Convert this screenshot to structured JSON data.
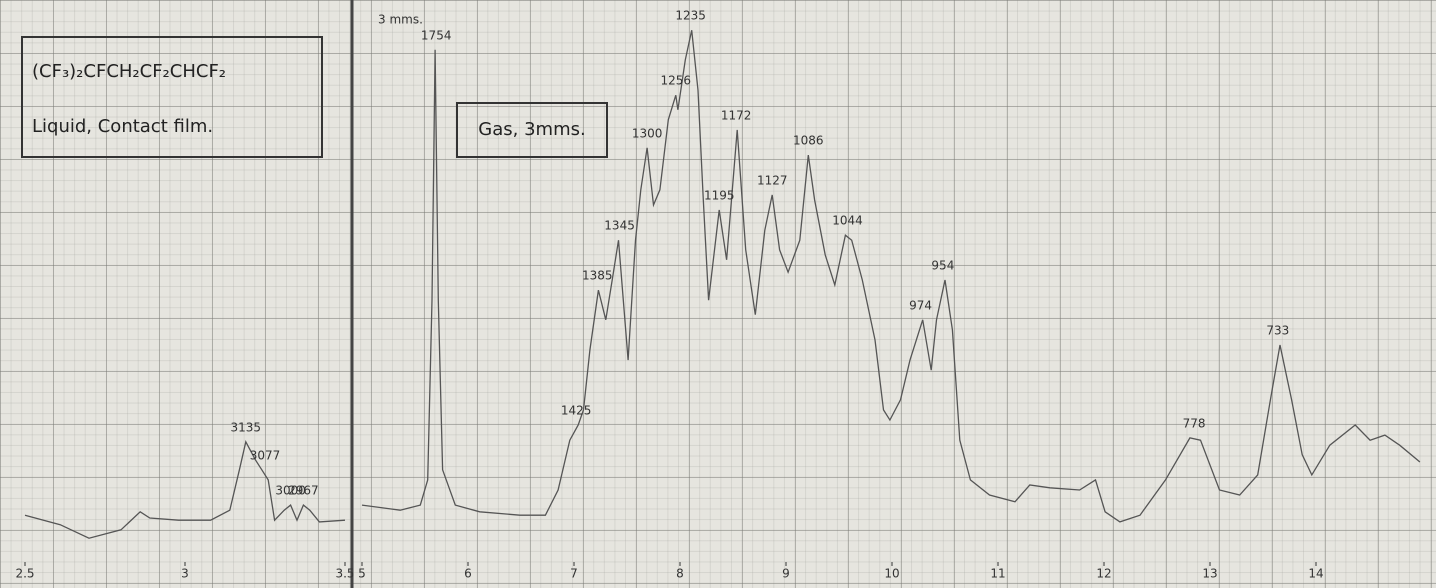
{
  "labels": {
    "formula": "(CF₃)₂CFCH₂CF₂CHCF₂",
    "state": "Liquid, Contact film.",
    "gas": "Gas, 3mms.",
    "path": "3 mms."
  },
  "chart_data": [
    {
      "type": "line",
      "color": "#555555",
      "xlim": [
        2.5,
        3.5
      ],
      "ylim": [
        0,
        100
      ],
      "xticks": [
        2.5,
        3,
        3.5
      ],
      "x": [
        2.5,
        2.61,
        2.7,
        2.8,
        2.86,
        2.89,
        2.98,
        3.08,
        3.14,
        3.17,
        3.19,
        3.22,
        3.24,
        3.26,
        3.28,
        3.31,
        3.33,
        3.35,
        3.37,
        3.39,
        3.42,
        3.5
      ],
      "values": [
        8.0,
        6.3,
        3.9,
        5.4,
        8.6,
        7.5,
        7.1,
        7.1,
        8.9,
        16.1,
        21.1,
        17.9,
        16.1,
        14.3,
        7.1,
        8.9,
        9.8,
        7.1,
        9.8,
        8.9,
        6.8,
        7.1
      ],
      "annotations": [
        {
          "text": "3135",
          "x": 3.19
        },
        {
          "text": "3077",
          "x": 3.25
        },
        {
          "text": "3000",
          "x": 3.33
        },
        {
          "text": "2967",
          "x": 3.37
        }
      ]
    },
    {
      "type": "line",
      "color": "#555555",
      "xlim": [
        5,
        15
      ],
      "ylim": [
        0,
        100
      ],
      "xticks": [
        5,
        6,
        7,
        8,
        9,
        10,
        11,
        12,
        13,
        14
      ],
      "x": [
        5.0,
        5.36,
        5.55,
        5.62,
        5.66,
        5.69,
        5.72,
        5.76,
        5.88,
        6.11,
        6.49,
        6.73,
        6.85,
        6.96,
        7.04,
        7.09,
        7.15,
        7.23,
        7.3,
        7.36,
        7.42,
        7.51,
        7.58,
        7.63,
        7.69,
        7.75,
        7.81,
        7.89,
        7.96,
        7.98,
        8.05,
        8.11,
        8.17,
        8.22,
        8.27,
        8.37,
        8.44,
        8.54,
        8.62,
        8.71,
        8.8,
        8.87,
        8.94,
        9.02,
        9.13,
        9.21,
        9.27,
        9.37,
        9.46,
        9.56,
        9.62,
        9.72,
        9.84,
        9.92,
        9.98,
        10.08,
        10.17,
        10.29,
        10.37,
        10.42,
        10.5,
        10.57,
        10.64,
        10.74,
        10.92,
        11.16,
        11.3,
        11.49,
        11.77,
        11.92,
        12.01,
        12.15,
        12.34,
        12.58,
        12.81,
        12.91,
        13.09,
        13.28,
        13.45,
        13.57,
        13.66,
        13.77,
        13.87,
        13.96,
        14.13,
        14.37,
        14.51,
        14.65,
        14.79,
        14.98
      ],
      "values": [
        9.8,
        8.9,
        9.8,
        14.3,
        46.4,
        91.1,
        46.4,
        16.1,
        9.8,
        8.6,
        8.0,
        8.0,
        12.5,
        21.4,
        24.1,
        26.8,
        37.5,
        48.2,
        42.9,
        50.0,
        57.1,
        35.7,
        57.1,
        66.1,
        73.6,
        63.4,
        66.1,
        78.6,
        83.0,
        80.4,
        89.3,
        94.6,
        83.9,
        64.3,
        46.4,
        62.5,
        53.6,
        76.8,
        55.4,
        43.8,
        58.9,
        65.2,
        55.4,
        51.4,
        57.1,
        72.3,
        64.3,
        54.5,
        49.1,
        58.0,
        57.1,
        50.0,
        39.3,
        26.8,
        25.0,
        28.6,
        35.7,
        42.9,
        33.9,
        42.9,
        50.0,
        41.1,
        21.4,
        14.3,
        11.6,
        10.4,
        13.4,
        12.9,
        12.5,
        14.3,
        8.6,
        6.8,
        8.0,
        14.3,
        21.8,
        21.4,
        12.5,
        11.6,
        15.2,
        28.6,
        38.4,
        28.6,
        18.8,
        15.2,
        20.5,
        24.1,
        21.4,
        22.3,
        20.5,
        17.5
      ],
      "annotations": [
        {
          "text": "1754",
          "x": 5.7
        },
        {
          "text": "1425",
          "x": 7.02
        },
        {
          "text": "1385",
          "x": 7.22
        },
        {
          "text": "1345",
          "x": 7.43
        },
        {
          "text": "1300",
          "x": 7.69
        },
        {
          "text": "1256",
          "x": 7.96
        },
        {
          "text": "1235",
          "x": 8.1
        },
        {
          "text": "1195",
          "x": 8.37
        },
        {
          "text": "1172",
          "x": 8.53
        },
        {
          "text": "1127",
          "x": 8.87
        },
        {
          "text": "1086",
          "x": 9.21
        },
        {
          "text": "1044",
          "x": 9.58
        },
        {
          "text": "974",
          "x": 10.27
        },
        {
          "text": "954",
          "x": 10.48
        },
        {
          "text": "778",
          "x": 12.85
        },
        {
          "text": "733",
          "x": 13.64
        }
      ]
    }
  ]
}
